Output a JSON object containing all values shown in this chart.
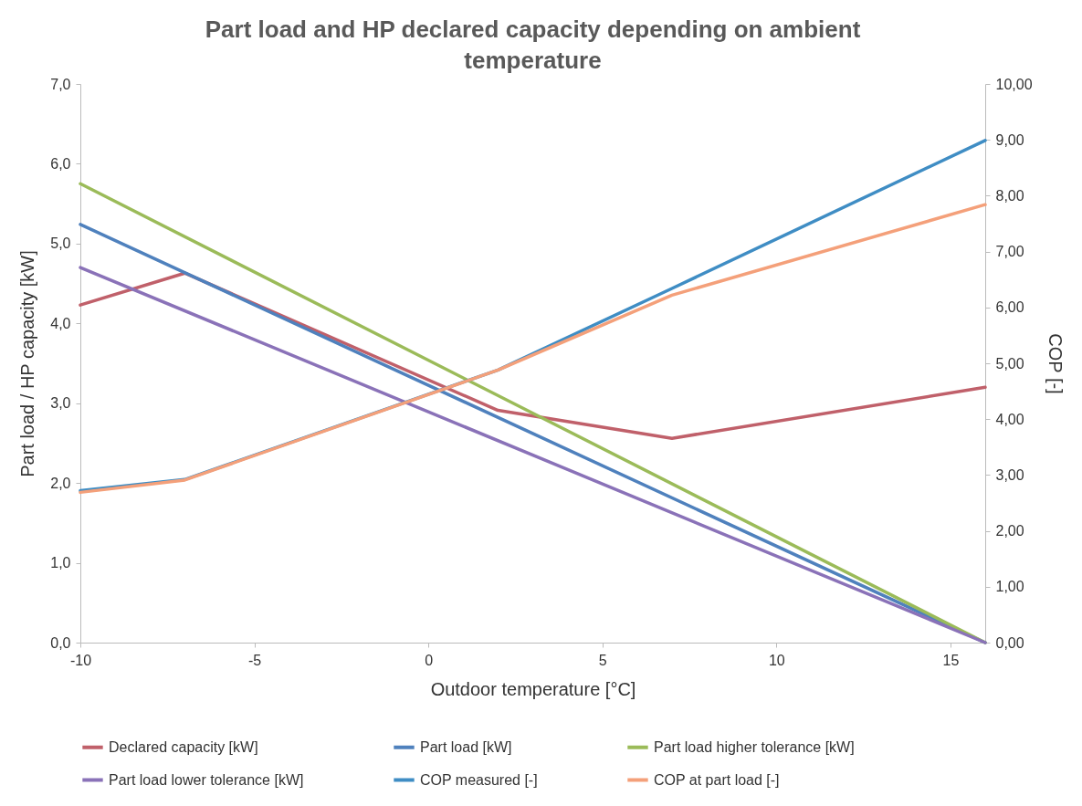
{
  "chart_data": {
    "type": "line",
    "title": "Part load and HP declared capacity depending on ambient temperature",
    "xlabel": "Outdoor temperature [°C]",
    "ylabel": "Part load / HP capacity [kW]",
    "y2label": "COP [-]",
    "legend": "bottom",
    "xlim": [
      -10,
      16
    ],
    "xticks": [
      -10,
      -5,
      0,
      5,
      10,
      15
    ],
    "ylim": [
      0,
      7
    ],
    "yticks": [
      {
        "value": 0,
        "label": "0,0"
      },
      {
        "value": 1,
        "label": "1,0"
      },
      {
        "value": 2,
        "label": "2,0"
      },
      {
        "value": 3,
        "label": "3,0"
      },
      {
        "value": 4,
        "label": "4,0"
      },
      {
        "value": 5,
        "label": "5,0"
      },
      {
        "value": 6,
        "label": "6,0"
      },
      {
        "value": 7,
        "label": "7,0"
      }
    ],
    "y2lim": [
      0,
      10
    ],
    "y2ticks": [
      {
        "value": 0,
        "label": "0,00"
      },
      {
        "value": 1,
        "label": "1,00"
      },
      {
        "value": 2,
        "label": "2,00"
      },
      {
        "value": 3,
        "label": "3,00"
      },
      {
        "value": 4,
        "label": "4,00"
      },
      {
        "value": 5,
        "label": "5,00"
      },
      {
        "value": 6,
        "label": "6,00"
      },
      {
        "value": 7,
        "label": "7,00"
      },
      {
        "value": 8,
        "label": "8,00"
      },
      {
        "value": 9,
        "label": "9,00"
      },
      {
        "value": 10,
        "label": "10,00"
      }
    ],
    "series": [
      {
        "name": "Declared capacity [kW]",
        "color": "#c0606a",
        "x": [
          -10,
          -7,
          2,
          7,
          16
        ],
        "values": [
          4.23,
          4.63,
          2.91,
          2.56,
          3.2
        ]
      },
      {
        "name": "Part load [kW]",
        "color": "#4f81bd",
        "x": [
          -10,
          16
        ],
        "values": [
          5.24,
          0
        ]
      },
      {
        "name": "Part load higher tolerance [kW]",
        "color": "#9bbb59",
        "x": [
          -10,
          16
        ],
        "values": [
          5.75,
          0
        ]
      },
      {
        "name": "Part load lower tolerance [kW]",
        "color": "#8a72b8",
        "x": [
          -10,
          16
        ],
        "values": [
          4.7,
          0
        ]
      },
      {
        "name": "COP measured [-]",
        "color": "#3f8dc4",
        "axis": "y2",
        "x": [
          -10,
          -7,
          2,
          7,
          16
        ],
        "values": [
          2.72,
          2.92,
          4.88,
          6.34,
          8.99
        ]
      },
      {
        "name": "COP at part load [-]",
        "color": "#f4a07a",
        "axis": "y2",
        "x": [
          -10,
          -7,
          2,
          7,
          16
        ],
        "values": [
          2.69,
          2.91,
          4.88,
          6.22,
          7.84
        ]
      }
    ]
  }
}
